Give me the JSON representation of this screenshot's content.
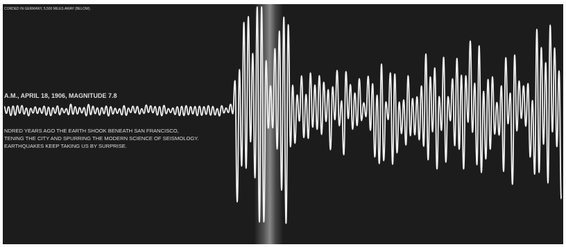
{
  "caption_top": "CORDED IN GERMANY, 5,500 MILES AWAY (BELOW).",
  "heading": "A.M., APRIL 18, 1906, MAGNITUDE 7.8",
  "body": [
    "NDRED YEARS AGO THE EARTH SHOOK BENEATH SAN FRANCISCO,",
    "TENING THE CITY AND SPURRING THE MODERN SCIENCE OF SEISMOLOGY.",
    "EARTHQUAKES KEEP TAKING US BY SURPRISE."
  ]
}
